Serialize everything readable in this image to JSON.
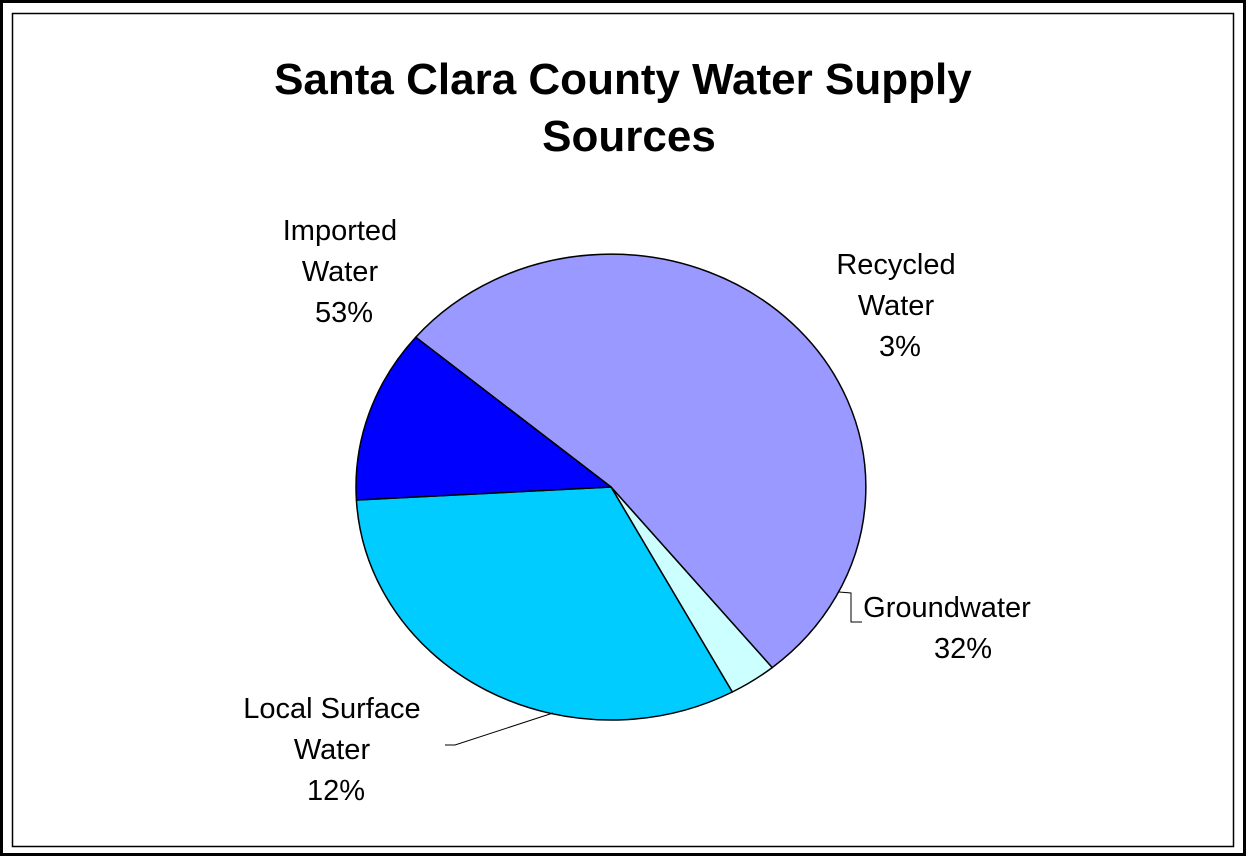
{
  "chart_data": {
    "type": "pie",
    "title": [
      "Santa Clara County Water Supply",
      "Sources"
    ],
    "slices": [
      {
        "label": [
          "Imported",
          "Water"
        ],
        "value": 53,
        "pct_label": "53%",
        "color": "#9999ff"
      },
      {
        "label": [
          "Recycled",
          "Water"
        ],
        "value": 3,
        "pct_label": "3%",
        "color": "#ccffff"
      },
      {
        "label": [
          "Groundwater"
        ],
        "value": 32,
        "pct_label": "32%",
        "color": "#00ccff"
      },
      {
        "label": [
          "Local Surface",
          "Water"
        ],
        "value": 12,
        "pct_label": "12%",
        "color": "#0000ff"
      }
    ],
    "legend": "none",
    "data_labels": "outside with leader lines"
  }
}
